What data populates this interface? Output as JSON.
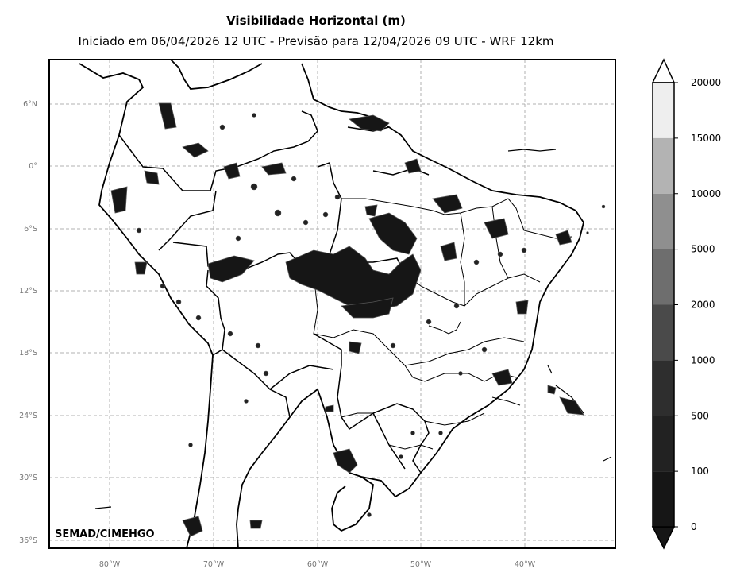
{
  "title": "Visibilidade Horizontal (m)",
  "subtitle": "Iniciado em 06/04/2026 12 UTC - Previsão para 12/04/2026 09 UTC - WRF 12km",
  "credit": "SEMAD/CIMEHGO",
  "axes": {
    "lon_ticks": [
      "80°W",
      "70°W",
      "60°W",
      "50°W",
      "40°W"
    ],
    "lat_ticks": [
      "6°N",
      "0°",
      "6°S",
      "12°S",
      "18°S",
      "24°S",
      "30°S",
      "36°S"
    ],
    "grid": "dashed gray"
  },
  "colorbar": {
    "levels": [
      "20000",
      "15000",
      "10000",
      "5000",
      "2000",
      "1000",
      "500",
      "100",
      "0"
    ],
    "colors": [
      "#eeeeee",
      "#b3b3b3",
      "#8f8f8f",
      "#6e6e6e",
      "#4a4a4a",
      "#2e2e2e",
      "#222222",
      "#161616"
    ],
    "extend": "both"
  },
  "map": {
    "region": "South America",
    "background": "#ffffff",
    "fog_color": "#161616",
    "coastline_color": "#000000"
  }
}
